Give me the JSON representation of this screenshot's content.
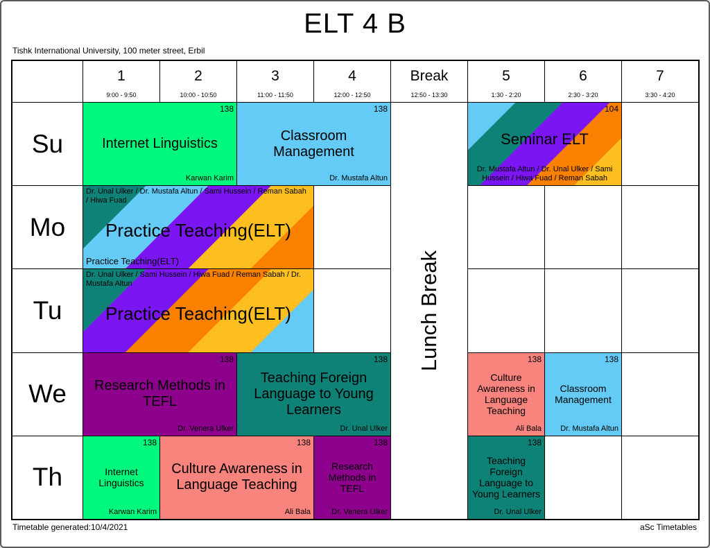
{
  "page": {
    "title": "ELT 4 B",
    "subtitle": "Tishk International University, 100 meter street, Erbil",
    "footer_left": "Timetable generated:10/4/2021",
    "footer_right": "aSc Timetables"
  },
  "timetable": {
    "lunch_break_label": "Lunch Break",
    "days": [
      "Su",
      "Mo",
      "Tu",
      "We",
      "Th"
    ],
    "columns": [
      {
        "label": "1",
        "time": "9:00 - 9:50"
      },
      {
        "label": "2",
        "time": "10:00 - 10:50"
      },
      {
        "label": "3",
        "time": "11:00 - 11:50"
      },
      {
        "label": "4",
        "time": "12:00 - 12:50"
      },
      {
        "label": "Break",
        "time": "12:50 - 13:30"
      },
      {
        "label": "5",
        "time": "1:30 - 2:20"
      },
      {
        "label": "6",
        "time": "2:30 - 3:20"
      },
      {
        "label": "7",
        "time": "3:30 - 4:20"
      }
    ],
    "lessons": {
      "su_internet_linguistics": {
        "subject": "Internet Linguistics",
        "room": "138",
        "teacher": "Karwan Karim"
      },
      "su_classroom_management": {
        "subject": "Classroom Management",
        "room": "138",
        "teacher": "Dr. Mustafa Altun"
      },
      "su_seminar_elt": {
        "subject": "Seminar ELT",
        "room": "104",
        "teachers": "Dr. Mustafa Altun / Dr. Unal Ulker / Sami Hussein / Hiwa Fuad / Reman Sabah"
      },
      "mo_practice_teaching": {
        "subject": "Practice Teaching(ELT)",
        "teachers": "Dr. Unal Ulker / Dr. Mustafa Altun / Sami Hussein / Reman Sabah / Hiwa Fuad",
        "note": "Practice Teaching(ELT)"
      },
      "tu_practice_teaching": {
        "subject": "Practice Teaching(ELT)",
        "teachers": "Dr. Unal Ulker / Sami Hussein / Hiwa Fuad / Reman Sabah / Dr. Mustafa Altun"
      },
      "we_research_methods": {
        "subject": "Research Methods in TEFL",
        "room": "138",
        "teacher": "Dr. Venera Ulker"
      },
      "we_teaching_foreign": {
        "subject": "Teaching Foreign Language to Young Learners",
        "room": "138",
        "teacher": "Dr. Unal Ulker"
      },
      "we_culture_awareness": {
        "subject": "Culture Awareness in Language Teaching",
        "room": "138",
        "teacher": "Ali Bala"
      },
      "we_classroom_management": {
        "subject": "Classroom Management",
        "room": "138",
        "teacher": "Dr. Mustafa Altun"
      },
      "th_internet_linguistics": {
        "subject": "Internet Linguistics",
        "room": "138",
        "teacher": "Karwan Karim"
      },
      "th_culture_awareness": {
        "subject": "Culture Awareness in Language Teaching",
        "room": "138",
        "teacher": "Ali Bala"
      },
      "th_research_methods": {
        "subject": "Research Methods in TEFL",
        "room": "138",
        "teacher": "Dr. Venera Ulker"
      },
      "th_teaching_foreign": {
        "subject": "Teaching Foreign Language to Young Learners",
        "room": "138",
        "teacher": "Dr. Unal Ulker"
      }
    }
  },
  "colors": {
    "green": "#00F97D",
    "sky_blue": "#63CBF5",
    "teal": "#0F8278",
    "magenta_purple": "#8C008C",
    "salmon": "#F9837D",
    "violet": "#7B16F2",
    "orange": "#FA8100",
    "amber": "#FCBF1F"
  }
}
